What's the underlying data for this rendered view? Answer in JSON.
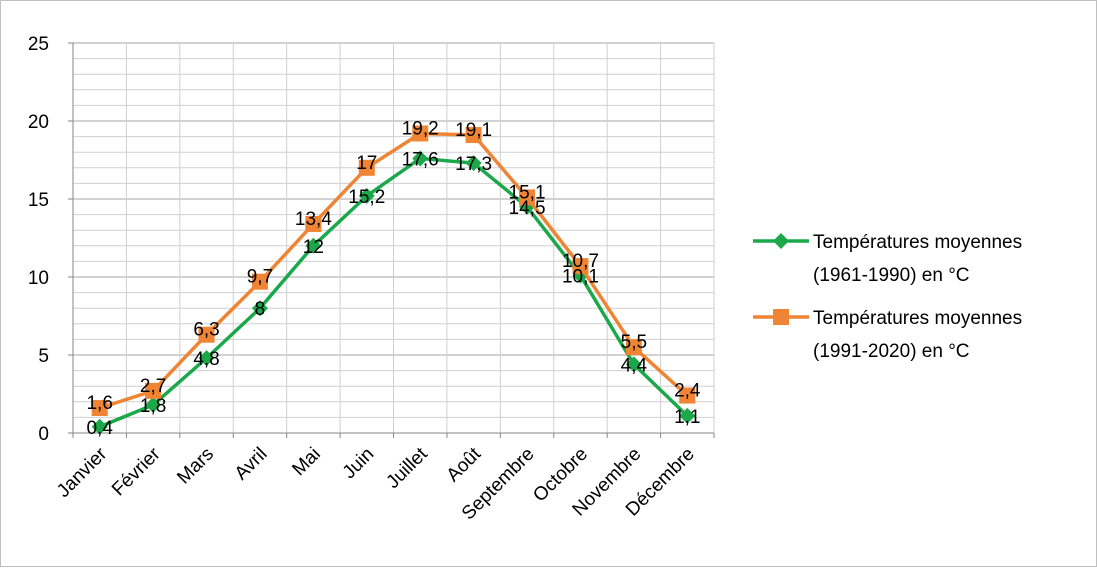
{
  "chart_data": {
    "type": "line",
    "categories": [
      "Janvier",
      "Février",
      "Mars",
      "Avril",
      "Mai",
      "Juin",
      "Juillet",
      "Août",
      "Septembre",
      "Octobre",
      "Novembre",
      "Décembre"
    ],
    "series": [
      {
        "name": "Températures moyennes (1961-1990) en °C",
        "legend_lines": [
          "Températures moyennes",
          "(1961-1990) en °C"
        ],
        "values": [
          0.4,
          1.8,
          4.8,
          8,
          12,
          15.2,
          17.6,
          17.3,
          14.5,
          10.1,
          4.4,
          1.1
        ],
        "labels": [
          "0,4",
          "1,8",
          "4,8",
          "8",
          "12",
          "15,2",
          "17,6",
          "17,3",
          "14,5",
          "10,1",
          "4,4",
          "1,1"
        ],
        "color": "#1aa84a",
        "marker": "diamond"
      },
      {
        "name": "Températures moyennes (1991-2020) en °C",
        "legend_lines": [
          "Températures moyennes",
          "(1991-2020) en °C"
        ],
        "values": [
          1.6,
          2.7,
          6.3,
          9.7,
          13.4,
          17,
          19.2,
          19.1,
          15.1,
          10.7,
          5.5,
          2.4
        ],
        "labels": [
          "1,6",
          "2,7",
          "6,3",
          "9,7",
          "13,4",
          "17",
          "19,2",
          "19,1",
          "15,1",
          "10,7",
          "5,5",
          "2,4"
        ],
        "color": "#ee8434",
        "marker": "square"
      }
    ],
    "yticks": [
      "0",
      "5",
      "10",
      "15",
      "20",
      "25"
    ],
    "ylim": [
      0,
      25
    ],
    "grid": true,
    "legend_position": "right"
  }
}
